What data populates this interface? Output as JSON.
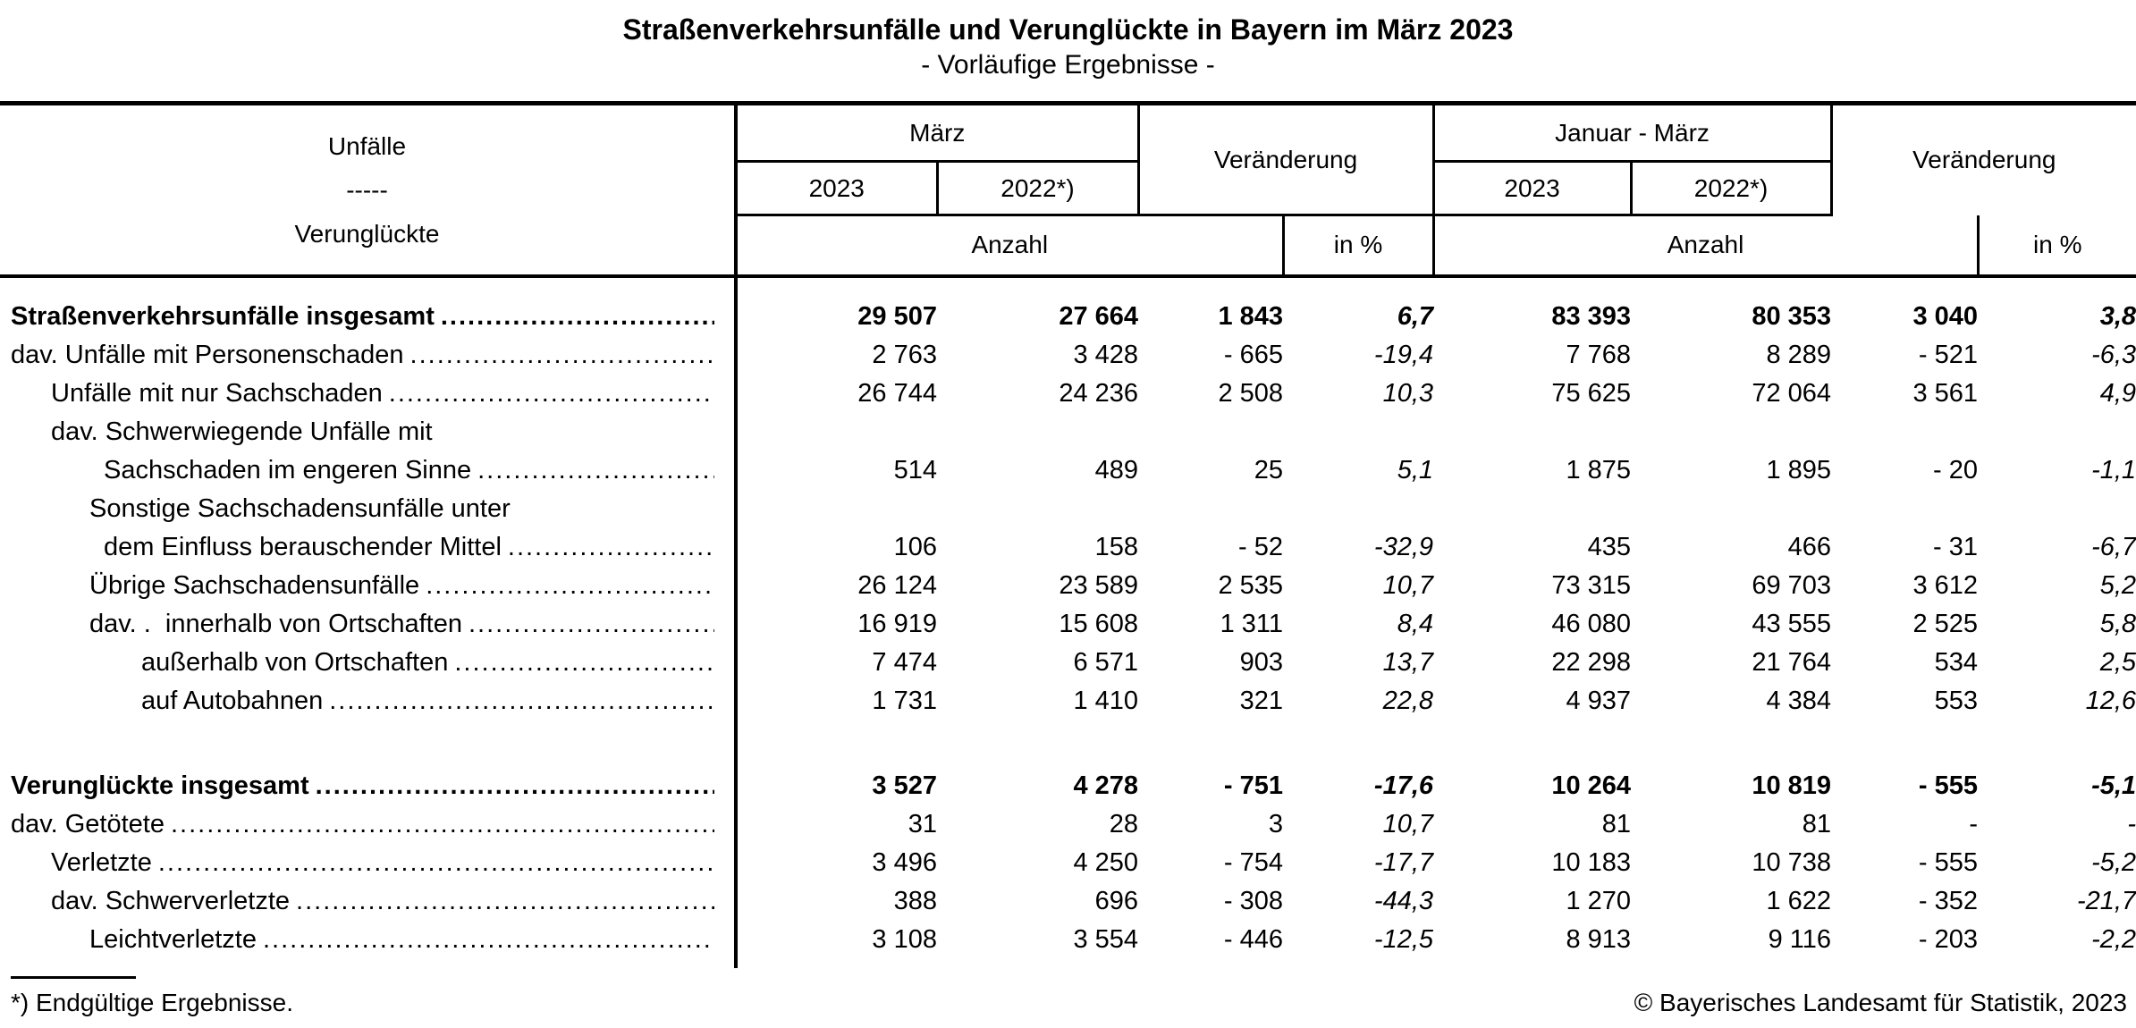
{
  "title": "Straßenverkehrsunfälle und Verunglückte in Bayern im März 2023",
  "subtitle": "- Vorläufige Ergebnisse -",
  "header": {
    "stub_line1": "Unfälle",
    "stub_line2": "-----",
    "stub_line3": "Verunglückte",
    "maerz": "März",
    "veraenderung1": "Veränderung",
    "januar_maerz": "Januar - März",
    "veraenderung2": "Veränderung",
    "col_2023_a": "2023",
    "col_2022_a": "2022*)",
    "col_2023_b": "2023",
    "col_2022_b": "2022*)",
    "anzahl1": "Anzahl",
    "in_percent1": "in %",
    "anzahl2": "Anzahl",
    "in_percent2": "in %"
  },
  "sections": [
    {
      "rows": [
        {
          "label": "Straßenverkehrsunfälle insgesamt",
          "indent": 0,
          "bold": true,
          "leader": true,
          "values": [
            "29 507",
            "27 664",
            "1 843",
            "6,7",
            "83 393",
            "80 353",
            "3 040",
            "3,8"
          ]
        },
        {
          "label": "dav. Unfälle mit Personenschaden",
          "indent": 0,
          "bold": false,
          "leader": true,
          "values": [
            "2 763",
            "3 428",
            "- 665",
            "-19,4",
            "7 768",
            "8 289",
            "- 521",
            "-6,3"
          ]
        },
        {
          "label": "Unfälle mit nur Sachschaden",
          "indent": 1,
          "bold": false,
          "leader": true,
          "values": [
            "26 744",
            "24 236",
            "2 508",
            "10,3",
            "75 625",
            "72 064",
            "3 561",
            "4,9"
          ]
        },
        {
          "label": "dav. Schwerwiegende Unfälle mit",
          "indent": 1,
          "bold": false,
          "leader": false,
          "values": null
        },
        {
          "label": "Sachschaden im engeren Sinne",
          "indent": 3,
          "bold": false,
          "leader": true,
          "values": [
            "514",
            "489",
            "25",
            "5,1",
            "1 875",
            "1 895",
            "- 20",
            "-1,1"
          ]
        },
        {
          "label": "Sonstige Sachschadensunfälle unter",
          "indent": 2,
          "bold": false,
          "leader": false,
          "values": null
        },
        {
          "label": "dem Einfluss berauschender Mittel",
          "indent": 3,
          "bold": false,
          "leader": true,
          "values": [
            "106",
            "158",
            "- 52",
            "-32,9",
            "435",
            "466",
            "- 31",
            "-6,7"
          ]
        },
        {
          "label": "Übrige Sachschadensunfälle",
          "indent": 2,
          "bold": false,
          "leader": true,
          "values": [
            "26 124",
            "23 589",
            "2 535",
            "10,7",
            "73 315",
            "69 703",
            "3 612",
            "5,2"
          ]
        },
        {
          "label": "dav. .  innerhalb von Ortschaften",
          "indent": 2,
          "bold": false,
          "leader": true,
          "values": [
            "16 919",
            "15 608",
            "1 311",
            "8,4",
            "46 080",
            "43 555",
            "2 525",
            "5,8"
          ]
        },
        {
          "label": "außerhalb von Ortschaften",
          "indent": 4,
          "bold": false,
          "leader": true,
          "values": [
            "7 474",
            "6 571",
            "903",
            "13,7",
            "22 298",
            "21 764",
            "534",
            "2,5"
          ]
        },
        {
          "label": "auf Autobahnen",
          "indent": 4,
          "bold": false,
          "leader": true,
          "values": [
            "1 731",
            "1 410",
            "321",
            "22,8",
            "4 937",
            "4 384",
            "553",
            "12,6"
          ]
        }
      ]
    },
    {
      "rows": [
        {
          "label": "Verunglückte insgesamt",
          "indent": 0,
          "bold": true,
          "leader": true,
          "values": [
            "3 527",
            "4 278",
            "- 751",
            "-17,6",
            "10 264",
            "10 819",
            "- 555",
            "-5,1"
          ]
        },
        {
          "label": "dav. Getötete",
          "indent": 0,
          "bold": false,
          "leader": true,
          "values": [
            "31",
            "28",
            "3",
            "10,7",
            "81",
            "81",
            "-",
            "-"
          ]
        },
        {
          "label": "Verletzte",
          "indent": 1,
          "bold": false,
          "leader": true,
          "values": [
            "3 496",
            "4 250",
            "- 754",
            "-17,7",
            "10 183",
            "10 738",
            "- 555",
            "-5,2"
          ]
        },
        {
          "label": "dav. Schwerverletzte",
          "indent": 1,
          "bold": false,
          "leader": true,
          "values": [
            "388",
            "696",
            "- 308",
            "-44,3",
            "1 270",
            "1 622",
            "- 352",
            "-21,7"
          ]
        },
        {
          "label": "Leichtverletzte",
          "indent": 2,
          "bold": false,
          "leader": true,
          "values": [
            "3 108",
            "3 554",
            "- 446",
            "-12,5",
            "8 913",
            "9 116",
            "- 203",
            "-2,2"
          ]
        }
      ]
    }
  ],
  "footer": {
    "footnote": "*) Endgültige Ergebnisse.",
    "copyright": "© Bayerisches Landesamt für Statistik, 2023"
  }
}
